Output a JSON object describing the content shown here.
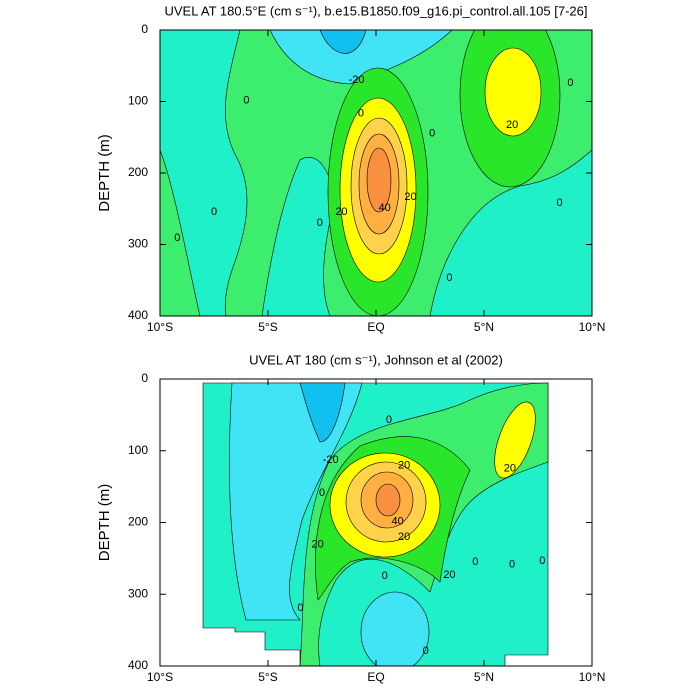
{
  "chart_data": [
    {
      "type": "contour",
      "title": "UVEL AT 180.5°E (cm s⁻¹), b.e15.B1850.f09_g16.pi_control.all.105 [7-26]",
      "ylabel": "DEPTH (m)",
      "xlim": [
        -10,
        10
      ],
      "xticks": [
        {
          "value": -10,
          "label": "10°S"
        },
        {
          "value": -5,
          "label": "5°S"
        },
        {
          "value": 0,
          "label": "EQ"
        },
        {
          "value": 5,
          "label": "5°N"
        },
        {
          "value": 10,
          "label": "10°N"
        }
      ],
      "ylim": [
        0,
        400
      ],
      "y_inverted": true,
      "yticks": [
        0,
        100,
        200,
        300,
        400
      ],
      "annotations": [
        {
          "text": "0",
          "x": -6.0,
          "y": 99
        },
        {
          "text": "0",
          "x": -9.2,
          "y": 291
        },
        {
          "text": "0",
          "x": -7.5,
          "y": 255
        },
        {
          "text": "0",
          "x": -2.6,
          "y": 270
        },
        {
          "text": "0",
          "x": -0.7,
          "y": 117
        },
        {
          "text": "0",
          "x": 2.6,
          "y": 145
        },
        {
          "text": "0",
          "x": 3.4,
          "y": 347
        },
        {
          "text": "0",
          "x": 9.0,
          "y": 74
        },
        {
          "text": "0",
          "x": 8.5,
          "y": 242
        },
        {
          "text": "-20",
          "x": -0.9,
          "y": 70
        },
        {
          "text": "20",
          "x": -1.6,
          "y": 255
        },
        {
          "text": "20",
          "x": 1.6,
          "y": 234
        },
        {
          "text": "20",
          "x": 6.3,
          "y": 133
        },
        {
          "text": "40",
          "x": 0.4,
          "y": 249
        }
      ]
    },
    {
      "type": "contour",
      "title": "UVEL AT 180 (cm s⁻¹), Johnson et al (2002)",
      "ylabel": "DEPTH (m)",
      "xlim": [
        -10,
        10
      ],
      "xticks": [
        {
          "value": -10,
          "label": "10°S"
        },
        {
          "value": -5,
          "label": "5°S"
        },
        {
          "value": 0,
          "label": "EQ"
        },
        {
          "value": 5,
          "label": "5°N"
        },
        {
          "value": 10,
          "label": "10°N"
        }
      ],
      "ylim": [
        0,
        400
      ],
      "y_inverted": true,
      "yticks": [
        0,
        100,
        200,
        300,
        400
      ],
      "annotations": [
        {
          "text": "-20",
          "x": -2.1,
          "y": 113
        },
        {
          "text": "0",
          "x": 0.6,
          "y": 57
        },
        {
          "text": "20",
          "x": 1.3,
          "y": 121
        },
        {
          "text": "20",
          "x": 6.2,
          "y": 125
        },
        {
          "text": "0",
          "x": -2.5,
          "y": 159
        },
        {
          "text": "20",
          "x": -2.7,
          "y": 231
        },
        {
          "text": "40",
          "x": 1.0,
          "y": 199
        },
        {
          "text": "20",
          "x": 1.3,
          "y": 220
        },
        {
          "text": "0",
          "x": 0.4,
          "y": 275
        },
        {
          "text": "20",
          "x": 3.4,
          "y": 273
        },
        {
          "text": "0",
          "x": 4.6,
          "y": 255
        },
        {
          "text": "0",
          "x": 6.3,
          "y": 259
        },
        {
          "text": "0",
          "x": 7.7,
          "y": 254
        },
        {
          "text": "0",
          "x": -3.5,
          "y": 319
        },
        {
          "text": "0",
          "x": 2.3,
          "y": 379
        }
      ]
    }
  ]
}
